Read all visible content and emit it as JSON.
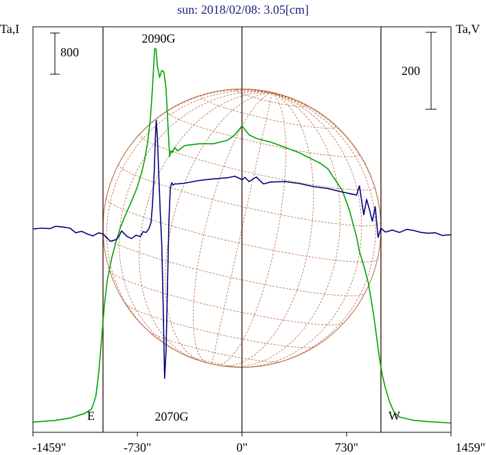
{
  "chart_data": {
    "type": "line",
    "title": "sun: 2018/02/08: 3.05[cm]",
    "y_left_label": "Ta,I",
    "y_right_label": "Ta,V",
    "scale_left_label": "800",
    "scale_right_label": "200",
    "x_range": [
      -1459,
      1459
    ],
    "limb_positions": [
      -970,
      970
    ],
    "x_ticks": [
      {
        "value": -1459,
        "label": "-1459\""
      },
      {
        "value": -730,
        "label": "-730\""
      },
      {
        "value": 0,
        "label": "0\""
      },
      {
        "value": 730,
        "label": "730\""
      },
      {
        "value": 1459,
        "label": "1459\""
      }
    ],
    "annotations": {
      "peak_max": "2090G",
      "peak_min": "2070G",
      "east": "E",
      "west": "W"
    },
    "colors": {
      "stokes_i": "#00a000",
      "stokes_v": "#000080",
      "disk": "#b5653a",
      "frame": "#000000",
      "limb": "#3a1a10",
      "title": "#1a237e"
    },
    "series": [
      {
        "key": "stokes_i",
        "x": [
          -1459,
          -1300,
          -1200,
          -1100,
          -1050,
          -1020,
          -1000,
          -980,
          -960,
          -940,
          -910,
          -880,
          -850,
          -820,
          -790,
          -760,
          -730,
          -700,
          -680,
          -660,
          -640,
          -625,
          -610,
          -600,
          -590,
          -575,
          -560,
          -545,
          -530,
          -515,
          -505,
          -495,
          -485,
          -470,
          -450,
          -400,
          -300,
          -200,
          -100,
          -50,
          0,
          50,
          100,
          200,
          300,
          400,
          450,
          500,
          550,
          600,
          650,
          700,
          750,
          800,
          820,
          850,
          880,
          900,
          920,
          940,
          960,
          980,
          1000,
          1030,
          1060,
          1100,
          1200,
          1300,
          1459
        ],
        "y": [
          7,
          17,
          30,
          55,
          80,
          150,
          280,
          470,
          660,
          800,
          920,
          1010,
          1090,
          1150,
          1205,
          1260,
          1320,
          1400,
          1470,
          1560,
          1690,
          1870,
          2090,
          2090,
          1990,
          1930,
          1970,
          1960,
          1870,
          1640,
          1490,
          1520,
          1510,
          1540,
          1520,
          1550,
          1560,
          1560,
          1580,
          1610,
          1660,
          1610,
          1590,
          1570,
          1540,
          1510,
          1490,
          1470,
          1450,
          1420,
          1360,
          1300,
          1190,
          1040,
          960,
          880,
          790,
          700,
          600,
          480,
          360,
          270,
          200,
          120,
          65,
          35,
          17,
          10,
          2
        ]
      },
      {
        "key": "stokes_v",
        "x": [
          -1459,
          -1400,
          -1340,
          -1300,
          -1250,
          -1200,
          -1160,
          -1120,
          -1080,
          -1040,
          -1000,
          -970,
          -950,
          -920,
          -880,
          -860,
          -840,
          -820,
          -800,
          -770,
          -740,
          -710,
          -690,
          -670,
          -650,
          -635,
          -625,
          -612,
          -604,
          -598,
          -590,
          -580,
          -570,
          -560,
          -550,
          -540,
          -530,
          -520,
          -510,
          -500,
          -490,
          -480,
          -470,
          -450,
          -400,
          -300,
          -200,
          -100,
          -50,
          0,
          20,
          50,
          100,
          150,
          200,
          300,
          400,
          500,
          600,
          700,
          800,
          820,
          850,
          870,
          890,
          910,
          930,
          950,
          970,
          1000,
          1050,
          1100,
          1150,
          1200,
          1250,
          1300,
          1350,
          1400,
          1459
        ],
        "y": [
          -2,
          0,
          -1,
          5,
          3,
          0,
          -12,
          -8,
          -15,
          -20,
          -12,
          -15,
          -22,
          -34,
          -30,
          -22,
          -7,
          -15,
          -22,
          -27,
          -18,
          -22,
          -9,
          -11,
          -2,
          15,
          60,
          150,
          240,
          280,
          230,
          130,
          40,
          -40,
          -200,
          -390,
          -320,
          -150,
          20,
          105,
          118,
          112,
          115,
          115,
          117,
          124,
          128,
          131,
          135,
          126,
          132,
          121,
          133,
          115,
          120,
          121,
          116,
          108,
          103,
          94,
          86,
          110,
          35,
          75,
          48,
          18,
          56,
          -24,
          0,
          -10,
          -5,
          -11,
          -3,
          -6,
          -11,
          -13,
          -12,
          -19,
          -17
        ]
      }
    ]
  }
}
